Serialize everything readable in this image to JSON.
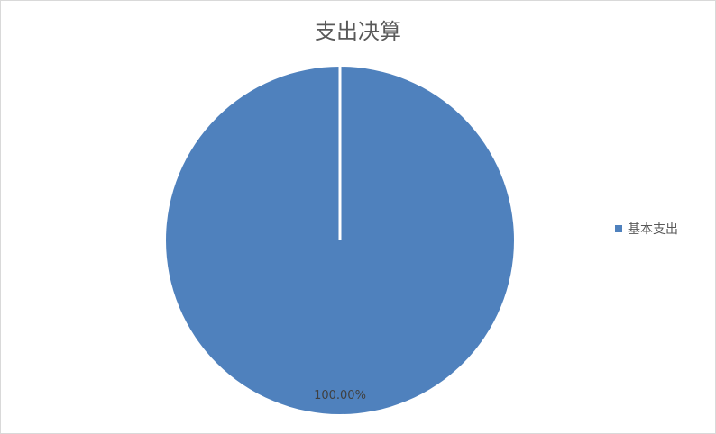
{
  "chart_data": {
    "type": "pie",
    "title": "支出决算",
    "categories": [
      "基本支出"
    ],
    "values": [
      100
    ],
    "data_labels": [
      "100.00%"
    ],
    "colors": [
      "#4f81bd"
    ],
    "legend_position": "right"
  }
}
